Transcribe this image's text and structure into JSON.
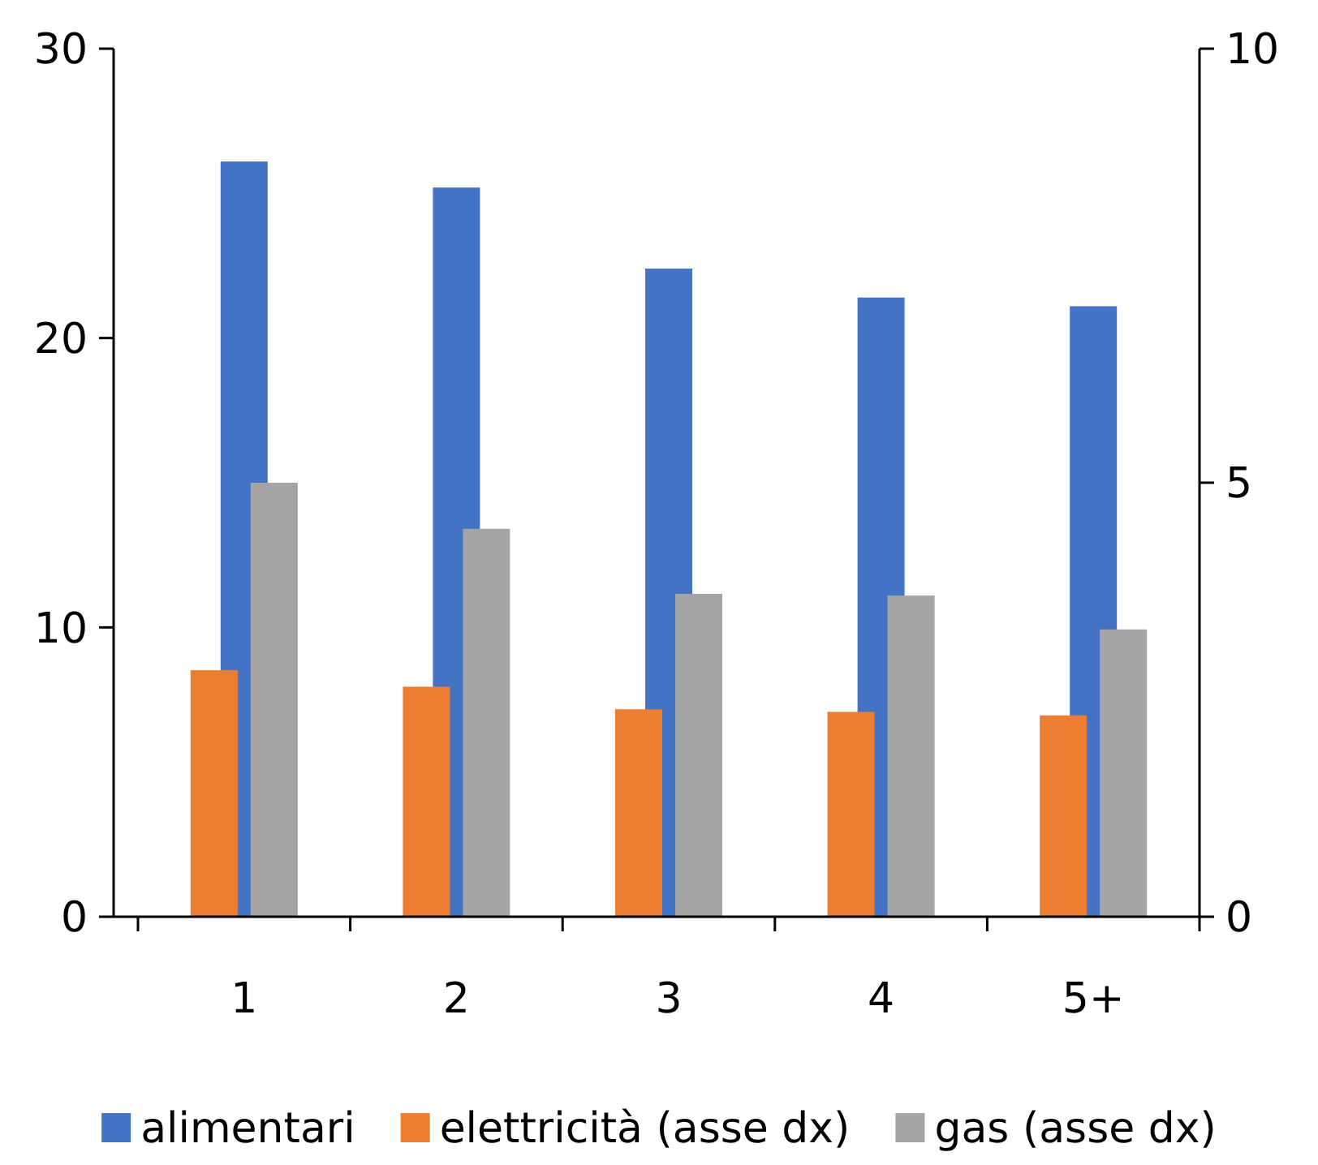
{
  "chart_data": {
    "type": "bar",
    "categories": [
      "1",
      "2",
      "3",
      "4",
      "5+"
    ],
    "series": [
      {
        "name": "alimentari",
        "color": "#4472c4",
        "values": [
          26.1,
          25.2,
          22.4,
          21.4,
          21.1
        ]
      },
      {
        "name": "elettricità (asse dx)",
        "color": "#ed7d31",
        "axis": "y2",
        "values": [
          2.84,
          2.65,
          2.39,
          2.36,
          2.32
        ]
      },
      {
        "name": "gas (asse dx)",
        "color": "#a5a5a5",
        "axis": "y2",
        "values": [
          5.0,
          4.47,
          3.72,
          3.7,
          3.31
        ]
      }
    ],
    "ylim": [
      0,
      30
    ],
    "yticks": [
      0,
      10,
      20,
      30
    ],
    "y2lim": [
      0,
      10
    ],
    "y2ticks": [
      0,
      5,
      10
    ],
    "grid": false,
    "legend": "bottom"
  }
}
